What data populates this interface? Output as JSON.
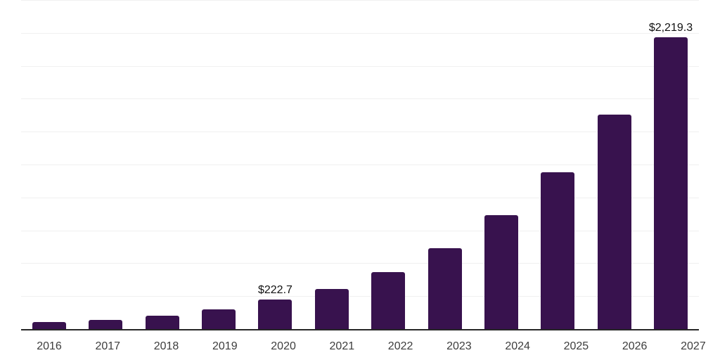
{
  "chart_data": {
    "type": "bar",
    "title": "",
    "xlabel": "",
    "ylabel": "",
    "categories": [
      "2016",
      "2017",
      "2018",
      "2019",
      "2020",
      "2021",
      "2022",
      "2023",
      "2024",
      "2025",
      "2026",
      "2027"
    ],
    "values": [
      51,
      68,
      103,
      151,
      222.7,
      306,
      434,
      615,
      863,
      1193,
      1631,
      2219.3
    ],
    "labeled_values": {
      "2020": "$222.7",
      "2027": "$2,219.3"
    },
    "ylim": [
      0,
      2500
    ],
    "gridline_step": 250,
    "grid": "horizontal-only",
    "legend": "none",
    "colors": {
      "bar": "#38124E",
      "axis": "#262626",
      "gridline": "#f0f0f0",
      "value_label": "#111111",
      "tick_label": "#3d3d3d",
      "background": "#ffffff"
    }
  }
}
